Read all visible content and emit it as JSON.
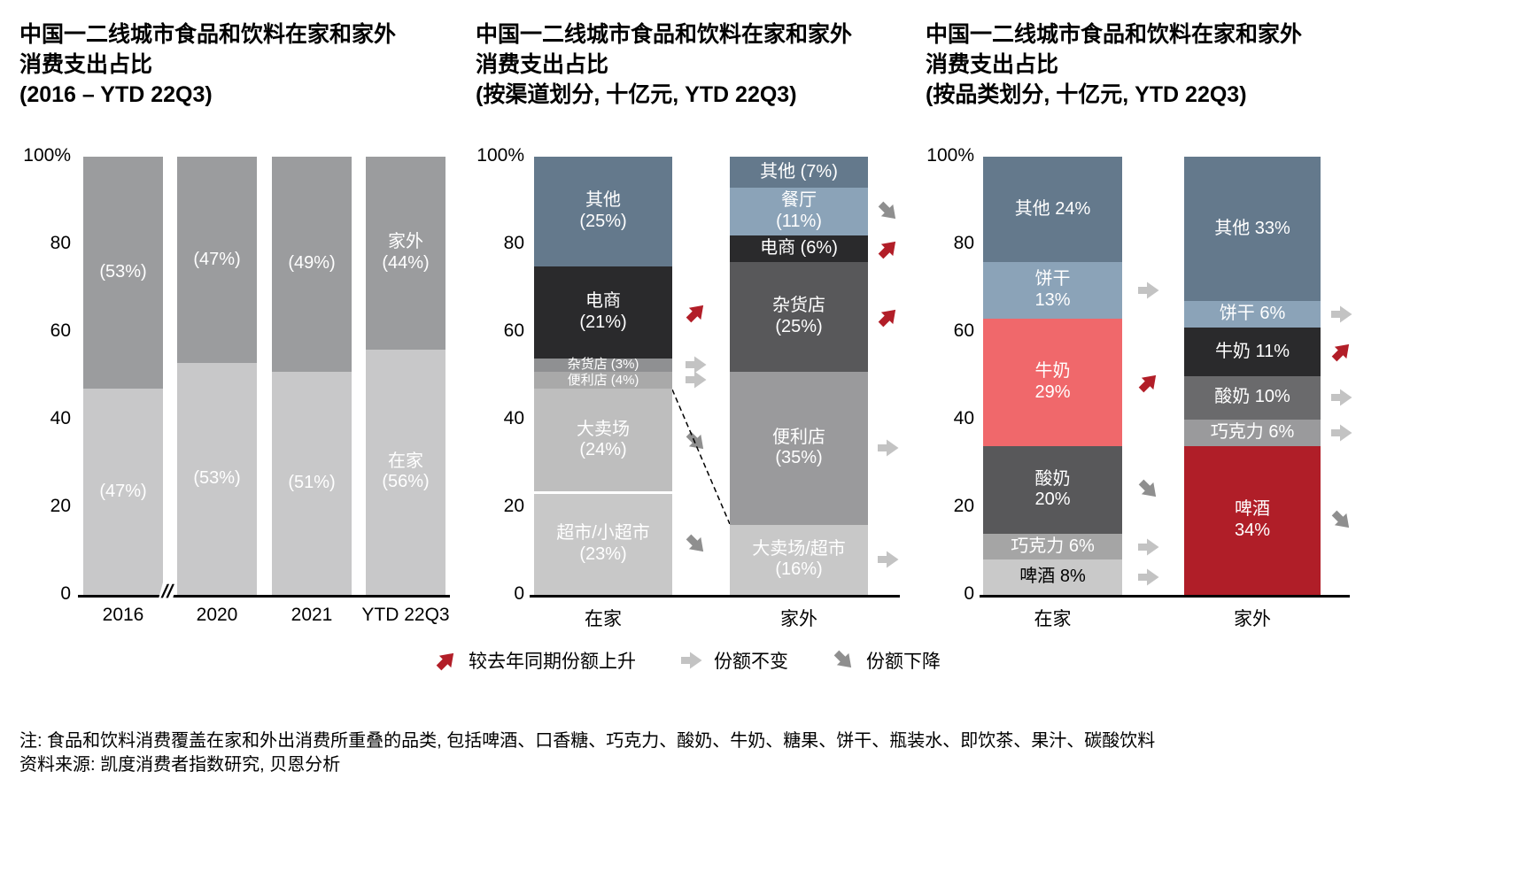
{
  "page": {
    "background": "#ffffff",
    "notes": {
      "line1": "注: 食品和饮料消费覆盖在家和外出消费所重叠的品类, 包括啤酒、口香糖、巧克力、酸奶、牛奶、糖果、饼干、瓶装水、即饮茶、果汁、碳酸饮料",
      "line2": "资料来源: 凯度消费者指数研究, 贝恩分析"
    }
  },
  "legend": {
    "items": [
      {
        "icon": "trend-up-icon",
        "direction": "up",
        "color": "#b21e28",
        "label": "较去年同期份额上升"
      },
      {
        "icon": "trend-flat-icon",
        "direction": "flat",
        "color": "#c3c3c3",
        "label": "份额不变"
      },
      {
        "icon": "trend-down-icon",
        "direction": "down",
        "color": "#8f8f8f",
        "label": "份额下降"
      }
    ]
  },
  "chart_data": [
    {
      "type": "bar",
      "stacked": true,
      "title": "中国一二线城市食品和饮料在家和家外消费支出占比 (2016 – YTD 22Q3)",
      "title_lines": [
        "中国一二线城市食品和饮料在家和家外",
        "消费支出占比",
        "(2016 – YTD 22Q3)"
      ],
      "ylim": [
        0,
        100
      ],
      "y_ticks": [
        "100%",
        "80",
        "60",
        "40",
        "20",
        "0"
      ],
      "x_axis_break": true,
      "categories": [
        "2016",
        "2020",
        "2021",
        "YTD 22Q3"
      ],
      "bars": [
        {
          "category": "2016",
          "segments": [
            {
              "name": "在家",
              "value": 47,
              "label": "(47%)",
              "color": "#c8c8c9",
              "text_color": "#ffffff"
            },
            {
              "name": "家外",
              "value": 53,
              "label": "(53%)",
              "color": "#9b9c9e",
              "text_color": "#ffffff"
            }
          ]
        },
        {
          "category": "2020",
          "segments": [
            {
              "name": "在家",
              "value": 53,
              "label": "(53%)",
              "color": "#c8c8c9",
              "text_color": "#ffffff"
            },
            {
              "name": "家外",
              "value": 47,
              "label": "(47%)",
              "color": "#9b9c9e",
              "text_color": "#ffffff"
            }
          ]
        },
        {
          "category": "2021",
          "segments": [
            {
              "name": "在家",
              "value": 51,
              "label": "(51%)",
              "color": "#c8c8c9",
              "text_color": "#ffffff"
            },
            {
              "name": "家外",
              "value": 49,
              "label": "(49%)",
              "color": "#9b9c9e",
              "text_color": "#ffffff"
            }
          ]
        },
        {
          "category": "YTD 22Q3",
          "segments": [
            {
              "name": "在家",
              "value": 56,
              "label": "在家\n(56%)",
              "color": "#c8c8c9",
              "text_color": "#ffffff"
            },
            {
              "name": "家外",
              "value": 44,
              "label": "家外\n(44%)",
              "color": "#9b9c9e",
              "text_color": "#ffffff"
            }
          ]
        }
      ]
    },
    {
      "type": "bar",
      "stacked": true,
      "title": "中国一二线城市食品和饮料在家和家外消费支出占比 (按渠道划分, 十亿元, YTD 22Q3)",
      "title_lines": [
        "中国一二线城市食品和饮料在家和家外",
        "消费支出占比",
        "(按渠道划分, 十亿元, YTD 22Q3)"
      ],
      "ylim": [
        0,
        100
      ],
      "y_ticks": [
        "100%",
        "80",
        "60",
        "40",
        "20",
        "0"
      ],
      "dashed_connector": "在家 超市+大卖场 (47%) → 家外 大卖场/超市 (16%)",
      "categories": [
        "在家",
        "家外"
      ],
      "bars": [
        {
          "category": "在家",
          "segments": [
            {
              "name": "超市/小超市",
              "value": 23,
              "label": "超市/小超市\n(23%)",
              "color": "#c8c8c8",
              "text_color": "#ffffff",
              "arrow": "down"
            },
            {
              "name": "大卖场",
              "value": 24,
              "label": "大卖场\n(24%)",
              "color": "#bebebe",
              "text_color": "#ffffff",
              "arrow": "down",
              "divider_below": true
            },
            {
              "name": "便利店",
              "value": 4,
              "label": "便利店 (4%)",
              "color": "#a9a9a9",
              "text_color": "#ffffff",
              "arrow": "flat",
              "small": true
            },
            {
              "name": "杂货店",
              "value": 3,
              "label": "杂货店 (3%)",
              "color": "#8f9092",
              "text_color": "#ffffff",
              "arrow": "flat",
              "small": true
            },
            {
              "name": "电商",
              "value": 21,
              "label": "电商\n(21%)",
              "color": "#2a2a2c",
              "text_color": "#ffffff",
              "arrow": "up"
            },
            {
              "name": "其他",
              "value": 25,
              "label": "其他\n(25%)",
              "color": "#64798c",
              "text_color": "#ffffff"
            }
          ]
        },
        {
          "category": "家外",
          "segments": [
            {
              "name": "大卖场/超市",
              "value": 16,
              "label": "大卖场/超市\n(16%)",
              "color": "#c8c8c8",
              "text_color": "#ffffff",
              "arrow": "flat"
            },
            {
              "name": "便利店",
              "value": 35,
              "label": "便利店\n(35%)",
              "color": "#9a9a9c",
              "text_color": "#ffffff",
              "arrow": "flat"
            },
            {
              "name": "杂货店",
              "value": 25,
              "label": "杂货店\n(25%)",
              "color": "#58585a",
              "text_color": "#ffffff",
              "arrow": "up"
            },
            {
              "name": "电商",
              "value": 6,
              "label": "电商 (6%)",
              "color": "#2a2a2c",
              "text_color": "#ffffff",
              "arrow": "up"
            },
            {
              "name": "餐厅",
              "value": 11,
              "label": "餐厅\n(11%)",
              "color": "#8ba3b8",
              "text_color": "#ffffff",
              "arrow": "down"
            },
            {
              "name": "其他",
              "value": 7,
              "label": "其他 (7%)",
              "color": "#64798c",
              "text_color": "#ffffff"
            }
          ]
        }
      ]
    },
    {
      "type": "bar",
      "stacked": true,
      "title": "中国一二线城市食品和饮料在家和家外消费支出占比 (按品类划分, 十亿元, YTD 22Q3)",
      "title_lines": [
        "中国一二线城市食品和饮料在家和家外",
        "消费支出占比",
        "(按品类划分, 十亿元, YTD 22Q3)"
      ],
      "ylim": [
        0,
        100
      ],
      "y_ticks": [
        "100%",
        "80",
        "60",
        "40",
        "20",
        "0"
      ],
      "categories": [
        "在家",
        "家外"
      ],
      "bars": [
        {
          "category": "在家",
          "segments": [
            {
              "name": "啤酒",
              "value": 8,
              "label": "啤酒 8%",
              "color": "#c9c9c9",
              "text_color": "#000000",
              "arrow": "flat"
            },
            {
              "name": "巧克力",
              "value": 6,
              "label": "巧克力 6%",
              "color": "#a5a5a5",
              "text_color": "#ffffff",
              "arrow": "flat"
            },
            {
              "name": "酸奶",
              "value": 20,
              "label": "酸奶\n20%",
              "color": "#58585a",
              "text_color": "#ffffff",
              "arrow": "down"
            },
            {
              "name": "牛奶",
              "value": 29,
              "label": "牛奶\n29%",
              "color": "#f0686b",
              "text_color": "#ffffff",
              "arrow": "up"
            },
            {
              "name": "饼干",
              "value": 13,
              "label": "饼干\n13%",
              "color": "#8ba3b8",
              "text_color": "#ffffff",
              "arrow": "flat"
            },
            {
              "name": "其他",
              "value": 24,
              "label": "其他 24%",
              "color": "#64798c",
              "text_color": "#ffffff"
            }
          ]
        },
        {
          "category": "家外",
          "segments": [
            {
              "name": "啤酒",
              "value": 34,
              "label": "啤酒\n34%",
              "color": "#b01e28",
              "text_color": "#ffffff",
              "arrow": "down"
            },
            {
              "name": "巧克力",
              "value": 6,
              "label": "巧克力 6%",
              "color": "#9a9a9c",
              "text_color": "#ffffff",
              "arrow": "flat"
            },
            {
              "name": "酸奶",
              "value": 10,
              "label": "酸奶 10%",
              "color": "#6a6a6c",
              "text_color": "#ffffff",
              "arrow": "flat"
            },
            {
              "name": "牛奶",
              "value": 11,
              "label": "牛奶 11%",
              "color": "#2a2a2c",
              "text_color": "#ffffff",
              "arrow": "up"
            },
            {
              "name": "饼干",
              "value": 6,
              "label": "饼干 6%",
              "color": "#8ba3b8",
              "text_color": "#ffffff",
              "arrow": "flat"
            },
            {
              "name": "其他",
              "value": 33,
              "label": "其他 33%",
              "color": "#64798c",
              "text_color": "#ffffff"
            }
          ]
        }
      ]
    }
  ]
}
